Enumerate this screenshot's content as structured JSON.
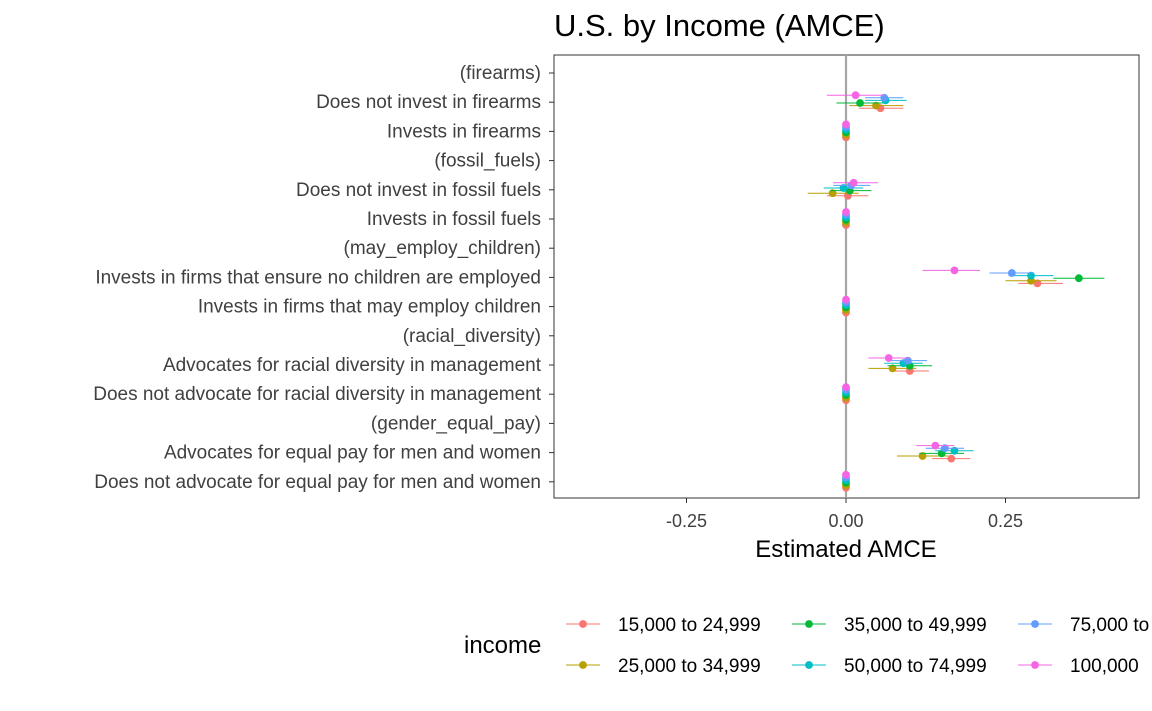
{
  "chart_data": {
    "type": "scatter",
    "title": "U.S. by Income (AMCE)",
    "xlabel": "Estimated AMCE",
    "ylabel": "",
    "xlim": [
      -0.45,
      0.45
    ],
    "xticks": [
      -0.25,
      0.0,
      0.25
    ],
    "xtick_labels": [
      "-0.25",
      "0.00",
      "0.25"
    ],
    "reference_line": 0,
    "grid": false,
    "legend": {
      "title": "income",
      "position": "bottom",
      "entries": [
        "15,000 to 24,999",
        "25,000 to 34,999",
        "35,000 to 49,999",
        "50,000 to 74,999",
        "75,000 to",
        "100,000"
      ]
    },
    "categories": [
      "(firearms)",
      "Does not invest in firearms",
      "Invests in firearms",
      "(fossil_fuels)",
      "Does not invest in fossil fuels",
      "Invests in fossil fuels",
      "(may_employ_children)",
      "Invests in firms that ensure no children are employed",
      "Invests in firms that may employ children",
      "(racial_diversity)",
      "Advocates for racial diversity in management",
      "Does not advocate for racial diversity in management",
      "(gender_equal_pay)",
      "Advocates for equal pay for men and women",
      "Does not advocate for equal pay for men and women"
    ],
    "series": [
      {
        "name": "15,000 to 24,999",
        "color": "#F8766D",
        "values": [
          null,
          0.054,
          0,
          null,
          0.003,
          0,
          null,
          0.3,
          0,
          null,
          0.1,
          0,
          null,
          0.165,
          0
        ],
        "ci_low": [
          null,
          0.02,
          null,
          null,
          -0.03,
          null,
          null,
          0.27,
          null,
          null,
          0.07,
          null,
          null,
          0.135,
          null
        ],
        "ci_high": [
          null,
          0.09,
          null,
          null,
          0.035,
          null,
          null,
          0.34,
          null,
          null,
          0.13,
          null,
          null,
          0.195,
          null
        ]
      },
      {
        "name": "25,000 to 34,999",
        "color": "#B79F00",
        "values": [
          null,
          0.047,
          0,
          null,
          -0.021,
          0,
          null,
          0.29,
          0,
          null,
          0.073,
          0,
          null,
          0.12,
          0
        ],
        "ci_low": [
          null,
          0.005,
          null,
          null,
          -0.06,
          null,
          null,
          0.25,
          null,
          null,
          0.035,
          null,
          null,
          0.08,
          null
        ],
        "ci_high": [
          null,
          0.09,
          null,
          null,
          0.02,
          null,
          null,
          0.33,
          null,
          null,
          0.11,
          null,
          null,
          0.16,
          null
        ]
      },
      {
        "name": "35,000 to 49,999",
        "color": "#00BA38",
        "values": [
          null,
          0.022,
          0,
          null,
          0.006,
          0,
          null,
          0.365,
          0,
          null,
          0.1,
          0,
          null,
          0.15,
          0
        ],
        "ci_low": [
          null,
          -0.015,
          null,
          null,
          -0.025,
          null,
          null,
          0.325,
          null,
          null,
          0.065,
          null,
          null,
          0.115,
          null
        ],
        "ci_high": [
          null,
          0.06,
          null,
          null,
          0.04,
          null,
          null,
          0.405,
          null,
          null,
          0.135,
          null,
          null,
          0.185,
          null
        ]
      },
      {
        "name": "50,000 to 74,999",
        "color": "#00BFC4",
        "values": [
          null,
          0.062,
          0,
          null,
          -0.004,
          0,
          null,
          0.29,
          0,
          null,
          0.09,
          0,
          null,
          0.17,
          0
        ],
        "ci_low": [
          null,
          0.03,
          null,
          null,
          -0.035,
          null,
          null,
          0.255,
          null,
          null,
          0.06,
          null,
          null,
          0.14,
          null
        ],
        "ci_high": [
          null,
          0.095,
          null,
          null,
          0.027,
          null,
          null,
          0.325,
          null,
          null,
          0.12,
          null,
          null,
          0.2,
          null
        ]
      },
      {
        "name": "75,000 to",
        "color": "#619CFF",
        "values": [
          null,
          0.06,
          0,
          null,
          0.008,
          0,
          null,
          0.26,
          0,
          null,
          0.097,
          0,
          null,
          0.155,
          0
        ],
        "ci_low": [
          null,
          0.03,
          null,
          null,
          -0.02,
          null,
          null,
          0.225,
          null,
          null,
          0.067,
          null,
          null,
          0.125,
          null
        ],
        "ci_high": [
          null,
          0.09,
          null,
          null,
          0.038,
          null,
          null,
          0.295,
          null,
          null,
          0.127,
          null,
          null,
          0.185,
          null
        ]
      },
      {
        "name": "100,000",
        "color": "#F564E3",
        "values": [
          null,
          0.015,
          0,
          null,
          0.012,
          0,
          null,
          0.17,
          0,
          null,
          0.067,
          0,
          null,
          0.14,
          0
        ],
        "ci_low": [
          null,
          -0.03,
          null,
          null,
          -0.02,
          null,
          null,
          0.12,
          null,
          null,
          0.035,
          null,
          null,
          0.11,
          null
        ],
        "ci_high": [
          null,
          0.06,
          null,
          null,
          0.05,
          null,
          null,
          0.21,
          null,
          null,
          0.1,
          null,
          null,
          0.17,
          null
        ]
      }
    ]
  }
}
